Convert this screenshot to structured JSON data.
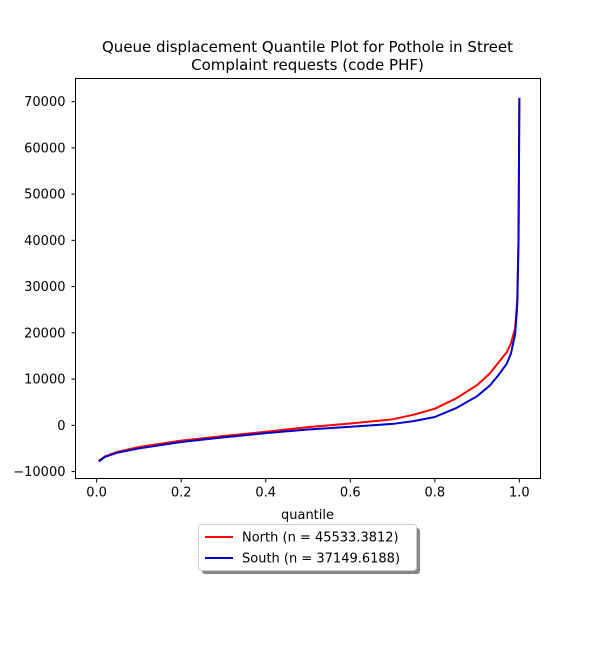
{
  "chart_data": {
    "type": "line",
    "title_lines": [
      "Queue displacement Quantile Plot for Pothole in Street",
      "Complaint  requests (code PHF)"
    ],
    "xlabel": "quantile",
    "ylabel": "",
    "xlim": [
      -0.05,
      1.05
    ],
    "ylim": [
      -11500,
      75000
    ],
    "xticks": [
      0.0,
      0.2,
      0.4,
      0.6,
      0.8,
      1.0
    ],
    "xtick_labels": [
      "0.0",
      "0.2",
      "0.4",
      "0.6",
      "0.8",
      "1.0"
    ],
    "yticks": [
      -10000,
      0,
      10000,
      20000,
      30000,
      40000,
      50000,
      60000,
      70000
    ],
    "ytick_labels": [
      "−10000",
      "0",
      "10000",
      "20000",
      "30000",
      "40000",
      "50000",
      "60000",
      "70000"
    ],
    "grid": false,
    "legend_position": "below plot, centered",
    "series": [
      {
        "name": "North (n = 45533.3812)",
        "color": "#ff0000",
        "x": [
          0.005,
          0.02,
          0.05,
          0.1,
          0.2,
          0.3,
          0.4,
          0.5,
          0.6,
          0.7,
          0.75,
          0.8,
          0.85,
          0.9,
          0.93,
          0.95,
          0.97,
          0.98,
          0.99,
          0.995,
          0.998,
          1.0
        ],
        "y": [
          -7700,
          -6700,
          -5700,
          -4700,
          -3300,
          -2300,
          -1400,
          -400,
          400,
          1300,
          2300,
          3600,
          5800,
          8700,
          11200,
          13500,
          15800,
          17700,
          21000,
          27000,
          40000,
          70800
        ]
      },
      {
        "name": "South (n = 37149.6188)",
        "color": "#0000cc",
        "x": [
          0.005,
          0.02,
          0.05,
          0.1,
          0.2,
          0.3,
          0.4,
          0.5,
          0.6,
          0.7,
          0.75,
          0.8,
          0.85,
          0.9,
          0.93,
          0.95,
          0.97,
          0.98,
          0.99,
          0.995,
          0.998,
          1.0
        ],
        "y": [
          -7800,
          -6800,
          -5900,
          -5000,
          -3600,
          -2600,
          -1700,
          -900,
          -300,
          300,
          900,
          1800,
          3700,
          6300,
          8600,
          10800,
          13300,
          15500,
          19700,
          26000,
          40000,
          70800
        ]
      }
    ]
  }
}
